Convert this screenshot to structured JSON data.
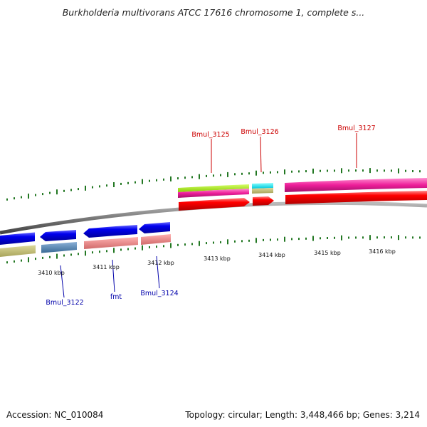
{
  "title": "Burkholderia multivorans ATCC 17616 chromosome 1, complete s...",
  "footer": {
    "accession": "Accession: NC_010084",
    "topology": "Topology: circular; Length: 3,448,466 bp; Genes: 3,214"
  },
  "colors": {
    "forward_label": "#cc0000",
    "reverse_label": "#0000aa",
    "tick": "#227722",
    "backbone": "#888888"
  },
  "axis_ticks": [
    {
      "label": "3410 kbp",
      "kbp": 3410
    },
    {
      "label": "3411 kbp",
      "kbp": 3411
    },
    {
      "label": "3412 kbp",
      "kbp": 3412
    },
    {
      "label": "3413 kbp",
      "kbp": 3413
    },
    {
      "label": "3414 kbp",
      "kbp": 3414
    },
    {
      "label": "3415 kbp",
      "kbp": 3415
    },
    {
      "label": "3416 kbp",
      "kbp": 3416
    }
  ],
  "forward_genes": [
    {
      "label": "Bmul_3125",
      "color": "#ff0000"
    },
    {
      "label": "Bmul_3126",
      "color": "#ff0000"
    },
    {
      "label": "Bmul_3127",
      "color": "#ff0000"
    }
  ],
  "reverse_genes": [
    {
      "label": "Bmul_3122",
      "color": "#0000ee"
    },
    {
      "label": "fmt",
      "color": "#0000ee"
    },
    {
      "label": "Bmul_3124",
      "color": "#0000ee"
    }
  ]
}
